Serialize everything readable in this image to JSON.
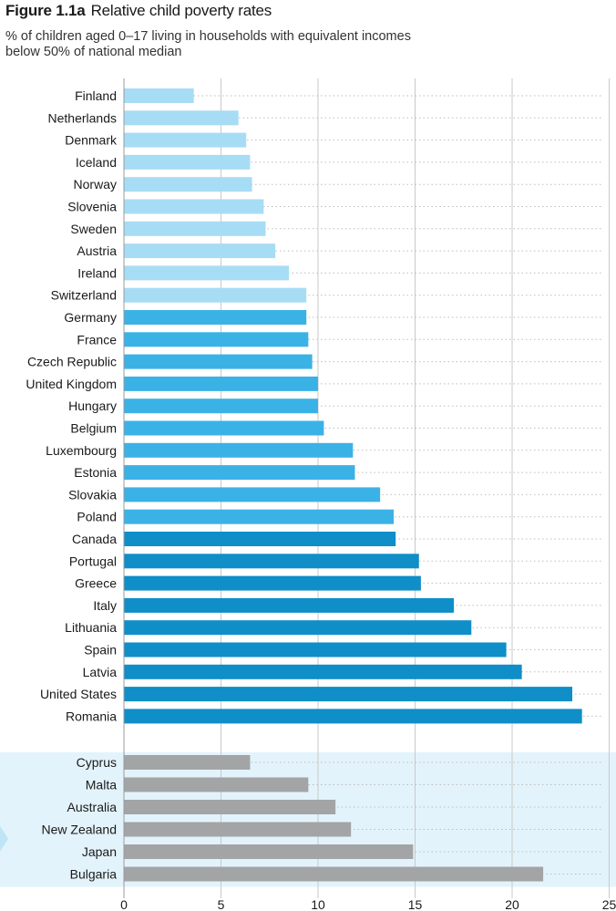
{
  "figure": {
    "number": "Figure 1.1a",
    "title": "Relative child poverty rates",
    "subtitle_line1": "% of children aged 0–17 living in households with equivalent incomes",
    "subtitle_line2": "below 50% of national median"
  },
  "colors": {
    "light": "#a7dcf5",
    "medium": "#3bb2e6",
    "dark": "#0f8ec8",
    "grey": "#a3a4a6",
    "band": "#e3f3fb",
    "arrow": "#bfe4f6",
    "grid": "#c9c9c9"
  },
  "chart_data": {
    "type": "bar",
    "orientation": "horizontal",
    "title": "Relative child poverty rates",
    "xlabel": "",
    "ylabel": "",
    "xlim": [
      0,
      25
    ],
    "xticks": [
      0,
      5,
      10,
      15,
      20,
      25
    ],
    "grid": true,
    "groups": [
      {
        "name": "main",
        "bars": [
          {
            "category": "Finland",
            "value": 3.6,
            "shade": "light"
          },
          {
            "category": "Netherlands",
            "value": 5.9,
            "shade": "light"
          },
          {
            "category": "Denmark",
            "value": 6.3,
            "shade": "light"
          },
          {
            "category": "Iceland",
            "value": 6.5,
            "shade": "light"
          },
          {
            "category": "Norway",
            "value": 6.6,
            "shade": "light"
          },
          {
            "category": "Slovenia",
            "value": 7.2,
            "shade": "light"
          },
          {
            "category": "Sweden",
            "value": 7.3,
            "shade": "light"
          },
          {
            "category": "Austria",
            "value": 7.8,
            "shade": "light"
          },
          {
            "category": "Ireland",
            "value": 8.5,
            "shade": "light"
          },
          {
            "category": "Switzerland",
            "value": 9.4,
            "shade": "light"
          },
          {
            "category": "Germany",
            "value": 9.4,
            "shade": "medium"
          },
          {
            "category": "France",
            "value": 9.5,
            "shade": "medium"
          },
          {
            "category": "Czech Republic",
            "value": 9.7,
            "shade": "medium"
          },
          {
            "category": "United Kingdom",
            "value": 10.0,
            "shade": "medium"
          },
          {
            "category": "Hungary",
            "value": 10.0,
            "shade": "medium"
          },
          {
            "category": "Belgium",
            "value": 10.3,
            "shade": "medium"
          },
          {
            "category": "Luxembourg",
            "value": 11.8,
            "shade": "medium"
          },
          {
            "category": "Estonia",
            "value": 11.9,
            "shade": "medium"
          },
          {
            "category": "Slovakia",
            "value": 13.2,
            "shade": "medium"
          },
          {
            "category": "Poland",
            "value": 13.9,
            "shade": "medium"
          },
          {
            "category": "Canada",
            "value": 14.0,
            "shade": "dark"
          },
          {
            "category": "Portugal",
            "value": 15.2,
            "shade": "dark"
          },
          {
            "category": "Greece",
            "value": 15.3,
            "shade": "dark"
          },
          {
            "category": "Italy",
            "value": 17.0,
            "shade": "dark"
          },
          {
            "category": "Lithuania",
            "value": 17.9,
            "shade": "dark"
          },
          {
            "category": "Spain",
            "value": 19.7,
            "shade": "dark"
          },
          {
            "category": "Latvia",
            "value": 20.5,
            "shade": "dark"
          },
          {
            "category": "United States",
            "value": 23.1,
            "shade": "dark"
          },
          {
            "category": "Romania",
            "value": 23.6,
            "shade": "dark"
          }
        ]
      },
      {
        "name": "secondary",
        "bars": [
          {
            "category": "Cyprus",
            "value": 6.5,
            "shade": "grey"
          },
          {
            "category": "Malta",
            "value": 9.5,
            "shade": "grey"
          },
          {
            "category": "Australia",
            "value": 10.9,
            "shade": "grey"
          },
          {
            "category": "New Zealand",
            "value": 11.7,
            "shade": "grey"
          },
          {
            "category": "Japan",
            "value": 14.9,
            "shade": "grey"
          },
          {
            "category": "Bulgaria",
            "value": 21.6,
            "shade": "grey"
          }
        ]
      }
    ]
  }
}
